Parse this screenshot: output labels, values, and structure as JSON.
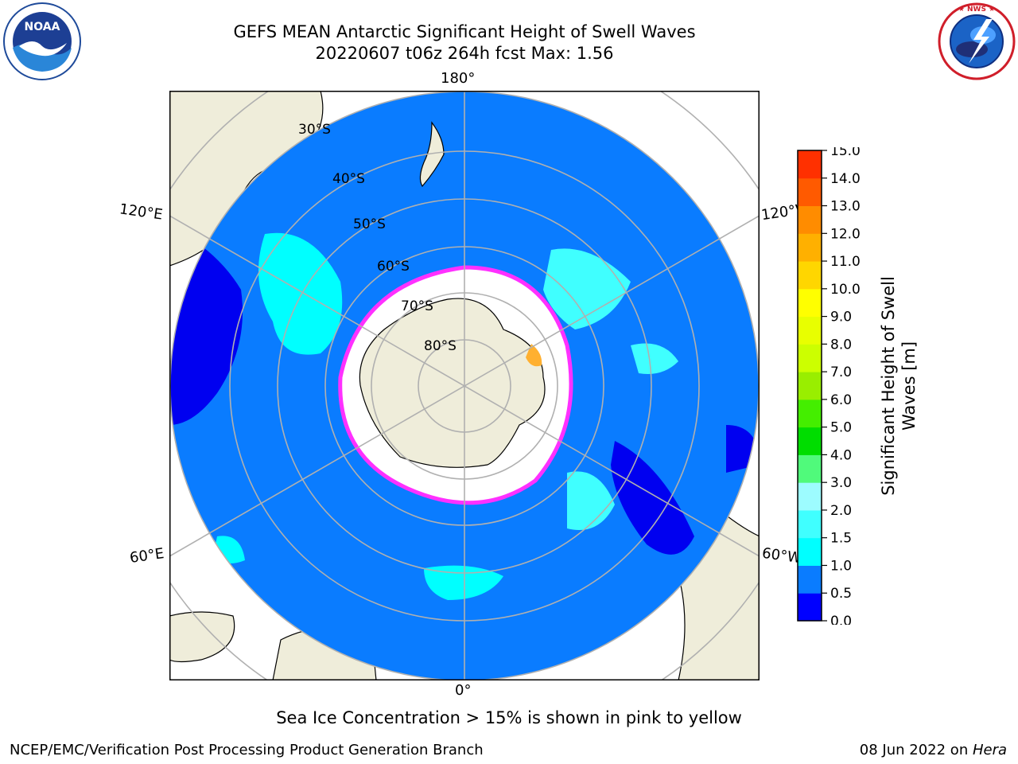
{
  "title": {
    "line1": "GEFS MEAN Antarctic Significant Height of Swell Waves",
    "line2": "20220607 t06z 264h fcst   Max: 1.56"
  },
  "logos": {
    "left": {
      "icon": "noaa-logo-icon",
      "text": "NOAA",
      "ring_text": "NATIONAL OCEANIC AND ATMOSPHERIC ADMINISTRATION · U.S. DEPARTMENT OF COMMERCE"
    },
    "right": {
      "icon": "nws-logo-icon",
      "ring_text": "NATIONAL WEATHER SERVICE"
    }
  },
  "map": {
    "projection": "south-polar-stereographic",
    "longitude_labels": {
      "top": "180°",
      "bottom": "0°",
      "upper_left": "120°E",
      "upper_right": "120°W",
      "lower_left": "60°E",
      "lower_right": "60°W"
    },
    "latitude_labels": [
      "30°S",
      "40°S",
      "50°S",
      "60°S",
      "70°S",
      "80°S"
    ],
    "colors": {
      "land": "#efedda",
      "ocean_low": "#0a7cff",
      "ocean_shallow": "#0000f0",
      "swell_1": "#00ffff",
      "swell_2": "#53ffff",
      "ice": "#ffffff",
      "ice_edge": "#ff30ff",
      "ice_orange": "#ffb030",
      "grid": "#b0b0b0"
    }
  },
  "colorbar": {
    "label_line1": "Significant Height of Swell",
    "label_line2": "Waves [m]",
    "ticks": [
      "0.0",
      "0.5",
      "1.0",
      "1.5",
      "2.0",
      "3.0",
      "4.0",
      "5.0",
      "6.0",
      "7.0",
      "8.0",
      "9.0",
      "10.0",
      "11.0",
      "12.0",
      "13.0",
      "14.0",
      "15.0"
    ],
    "colors": [
      "#0000ff",
      "#0a7cff",
      "#00ffff",
      "#40ffff",
      "#9dfcff",
      "#50fa7b",
      "#00dd00",
      "#44ee00",
      "#99ee00",
      "#ccff00",
      "#e8ff00",
      "#ffff00",
      "#ffd600",
      "#ffb000",
      "#ff8c00",
      "#ff5a00",
      "#ff3000",
      "#ff0000"
    ]
  },
  "caption": "Sea Ice Concentration > 15% is shown in pink to yellow",
  "footer": {
    "left": "NCEP/EMC/Verification Post Processing Product Generation Branch",
    "right_prefix": "08 Jun 2022 on ",
    "right_machine": "Hera"
  }
}
